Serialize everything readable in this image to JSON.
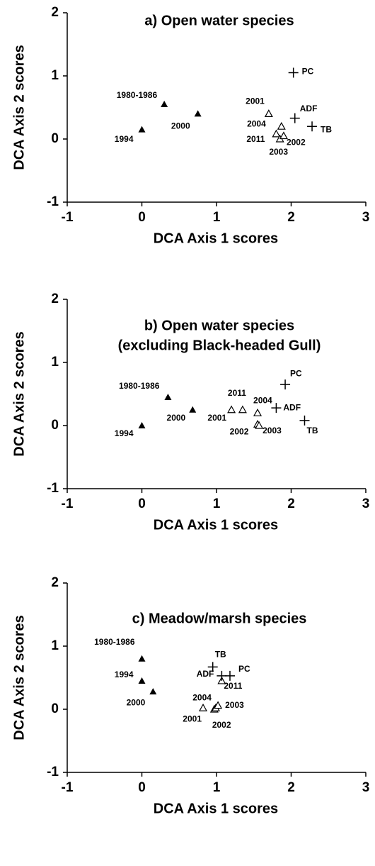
{
  "chart_data": [
    {
      "type": "scatter",
      "title": [
        "a) Open water species"
      ],
      "xlabel": "DCA Axis 1 scores",
      "ylabel": "DCA Axis 2 scores",
      "xlim": [
        -1,
        3
      ],
      "xticks": [
        -1,
        0,
        1,
        2,
        3
      ],
      "ylim": [
        -1,
        2
      ],
      "yticks": [
        -1,
        0,
        1,
        2
      ],
      "series": [
        {
          "marker": "filled-triangle",
          "color": "#000000",
          "x": [
            0.3,
            0.75,
            0
          ],
          "y": [
            0.55,
            0.4,
            0.15
          ],
          "labels": [
            "1980-1986",
            "2000",
            "1994"
          ]
        },
        {
          "marker": "open-triangle",
          "color": "#000000",
          "x": [
            1.7,
            1.87,
            1.8,
            1.85,
            1.9
          ],
          "y": [
            0.4,
            0.2,
            0.08,
            0,
            0.05
          ],
          "labels": [
            "2001",
            "2004",
            "2011",
            "2003",
            "2002"
          ]
        },
        {
          "marker": "plus",
          "color": "#000000",
          "x": [
            2.03,
            2.05,
            2.28
          ],
          "y": [
            1.05,
            0.33,
            0.2
          ],
          "labels": [
            "PC",
            "ADF",
            "TB"
          ]
        }
      ]
    },
    {
      "type": "scatter",
      "title": [
        "b) Open water species",
        "(excluding Black-headed Gull)"
      ],
      "xlabel": "DCA Axis 1 scores",
      "ylabel": "DCA Axis 2 scores",
      "xlim": [
        -1,
        3
      ],
      "xticks": [
        -1,
        0,
        1,
        2,
        3
      ],
      "ylim": [
        -1,
        2
      ],
      "yticks": [
        -1,
        0,
        1,
        2
      ],
      "series": [
        {
          "marker": "filled-triangle",
          "color": "#000000",
          "x": [
            0.35,
            0.68,
            0
          ],
          "y": [
            0.45,
            0.25,
            0
          ],
          "labels": [
            "1980-1986",
            "2000",
            "1994"
          ]
        },
        {
          "marker": "open-triangle",
          "color": "#000000",
          "x": [
            1.2,
            1.35,
            1.55,
            1.55,
            1.57
          ],
          "y": [
            0.25,
            0.25,
            0.2,
            0.02,
            0
          ],
          "labels": [
            "2001",
            "2011",
            "2004",
            "2002",
            "2003"
          ]
        },
        {
          "marker": "plus",
          "color": "#000000",
          "x": [
            1.92,
            1.8,
            2.18
          ],
          "y": [
            0.65,
            0.28,
            0.08
          ],
          "labels": [
            "PC",
            "ADF",
            "TB"
          ]
        }
      ]
    },
    {
      "type": "scatter",
      "title": [
        "c) Meadow/marsh species"
      ],
      "xlabel": "DCA Axis 1 scores",
      "ylabel": "DCA Axis 2 scores",
      "xlim": [
        -1,
        3
      ],
      "xticks": [
        -1,
        0,
        1,
        2,
        3
      ],
      "ylim": [
        -1,
        2
      ],
      "yticks": [
        -1,
        0,
        1,
        2
      ],
      "series": [
        {
          "marker": "filled-triangle",
          "color": "#000000",
          "x": [
            0,
            0,
            0.15
          ],
          "y": [
            0.8,
            0.45,
            0.28
          ],
          "labels": [
            "1980-1986",
            "1994",
            "2000"
          ]
        },
        {
          "marker": "open-triangle",
          "color": "#000000",
          "x": [
            0.82,
            0.97,
            0.99,
            1.02,
            1.07
          ],
          "y": [
            0.02,
            0,
            0.02,
            0.06,
            0.45
          ],
          "labels": [
            "2001",
            "2002",
            "2004",
            "2003",
            "2011"
          ]
        },
        {
          "marker": "plus",
          "color": "#000000",
          "x": [
            0.95,
            1.07,
            1.18
          ],
          "y": [
            0.67,
            0.53,
            0.53
          ],
          "labels": [
            "TB",
            "ADF",
            "PC"
          ]
        }
      ]
    }
  ]
}
